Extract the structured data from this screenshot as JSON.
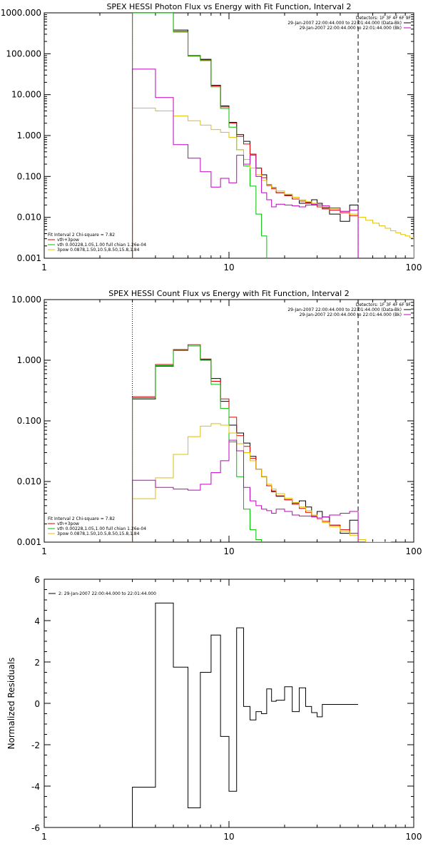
{
  "chart_data": [
    {
      "type": "line",
      "step": true,
      "title": "SPEX HESSI Photon Flux vs Energy with Fit Function, Interval 2",
      "x_scale": "log",
      "y_scale": "log",
      "xlim": [
        1,
        100
      ],
      "ylim": [
        0.001,
        1000
      ],
      "x_ticks": [
        "1",
        "10",
        "100"
      ],
      "y_ticks": [
        "1000.000",
        "100.000",
        "10.000",
        "1.000",
        "0.100",
        "0.010",
        "0.001"
      ],
      "legend_top": {
        "header": "Detectors: 1F 3F 4F 6F 9F",
        "entries": [
          {
            "text": "29-Jan-2007 22:00:44.000 to 22:01:44.000 (Data-Bk)",
            "color": "#000000"
          },
          {
            "text": "29-Jan-2007 22:00:44.000 to 22:01:44.000 (Bk)",
            "color": "#c000c0"
          }
        ]
      },
      "legend_bottom": {
        "header": "Fit Interval 2   Chi-square = 7.82",
        "entries": [
          {
            "text": "vth+3pow",
            "color": "#e00000"
          },
          {
            "text": "vth 0.00228,1.05,1.00  full chian 1.26e-04",
            "color": "#00c000"
          },
          {
            "text": "3pow 0.0878,1.50,10.5,8.50,15.8,1.84",
            "color": "#e0c000"
          }
        ]
      },
      "vlines": [
        {
          "x": 3,
          "style": "dotted",
          "color": "#000000"
        },
        {
          "x": 50,
          "style": "dashed",
          "color": "#000000"
        }
      ],
      "series": [
        {
          "role": "data-bk",
          "color": "#000000",
          "edges": [
            3,
            4,
            5,
            6,
            7,
            8,
            9,
            10,
            11,
            12,
            13,
            14,
            15,
            16,
            17,
            18,
            20,
            22,
            24,
            26,
            28,
            30,
            32,
            35,
            40,
            45,
            50
          ],
          "values": [
            1000,
            1000,
            380,
            90,
            73,
            17,
            5.3,
            2.1,
            1.05,
            0.72,
            0.35,
            0.16,
            0.11,
            0.063,
            0.053,
            0.04,
            0.035,
            0.028,
            0.022,
            0.023,
            0.027,
            0.022,
            0.017,
            0.012,
            0.008,
            0.02
          ]
        },
        {
          "role": "vth+3pow",
          "color": "#e00000",
          "edges": [
            3,
            4,
            5,
            6,
            7,
            8,
            9,
            10,
            11,
            12,
            13,
            14,
            15,
            16,
            17,
            18,
            20,
            22,
            24,
            26,
            28,
            30,
            32,
            35,
            40,
            45,
            50
          ],
          "values": [
            1000,
            1000,
            350,
            88,
            71,
            16.5,
            5.0,
            2.0,
            0.95,
            0.62,
            0.35,
            0.16,
            0.093,
            0.06,
            0.05,
            0.04,
            0.034,
            0.028,
            0.025,
            0.022,
            0.02,
            0.018,
            0.016,
            0.015,
            0.013,
            0.011
          ]
        },
        {
          "role": "vth",
          "color": "#00c000",
          "edges": [
            3,
            4,
            5,
            6,
            7,
            8,
            9,
            10,
            11,
            12,
            13,
            14,
            15,
            16
          ],
          "values": [
            1000,
            1000,
            340,
            87,
            68,
            15.5,
            4.6,
            1.6,
            0.45,
            0.18,
            0.058,
            0.012,
            0.0035
          ]
        },
        {
          "role": "3pow",
          "color": "#e0c000",
          "edges": [
            3,
            4,
            5,
            6,
            7,
            8,
            9,
            10,
            11,
            12,
            13,
            14,
            15,
            16,
            17,
            18,
            20,
            22,
            24,
            26,
            28,
            30,
            32,
            35,
            40,
            45,
            50,
            55,
            60,
            65,
            70,
            75,
            80,
            85,
            90,
            95,
            100
          ],
          "values": [
            4.7,
            4.0,
            3.0,
            2.3,
            1.8,
            1.4,
            1.2,
            0.9,
            0.45,
            0.26,
            0.16,
            0.11,
            0.08,
            0.062,
            0.052,
            0.044,
            0.037,
            0.031,
            0.027,
            0.024,
            0.022,
            0.02,
            0.018,
            0.016,
            0.014,
            0.012,
            0.01,
            0.0085,
            0.0072,
            0.0062,
            0.0054,
            0.0047,
            0.0042,
            0.0038,
            0.0035,
            0.0032
          ]
        },
        {
          "role": "bk",
          "color": "#c000c0",
          "edges": [
            3,
            4,
            5,
            6,
            7,
            8,
            9,
            10,
            11,
            12,
            13,
            14,
            15,
            16,
            17,
            18,
            20,
            22,
            24,
            26,
            28,
            30,
            32,
            35,
            40,
            45,
            50
          ],
          "values": [
            42,
            8.5,
            0.6,
            0.28,
            0.13,
            0.055,
            0.09,
            0.07,
            0.33,
            0.2,
            0.33,
            0.1,
            0.04,
            0.027,
            0.018,
            0.021,
            0.02,
            0.019,
            0.018,
            0.02,
            0.021,
            0.02,
            0.019,
            0.017,
            0.014,
            0.015
          ]
        }
      ]
    },
    {
      "type": "line",
      "step": true,
      "title": "SPEX HESSI Count Flux vs Energy with Fit Function, Interval 2",
      "x_scale": "log",
      "y_scale": "log",
      "xlim": [
        1,
        100
      ],
      "ylim": [
        0.001,
        10
      ],
      "x_ticks": [
        "1",
        "10",
        "100"
      ],
      "y_ticks": [
        "10.000",
        "1.000",
        "0.100",
        "0.010",
        "0.001"
      ],
      "legend_top": {
        "header": "Detectors: 1F 3F 4F 6F 9F",
        "entries": [
          {
            "text": "29-Jan-2007 22:00:44.000 to 22:01:44.000 (Data-Bk)",
            "color": "#000000"
          },
          {
            "text": "29-Jan-2007 22:00:44.000 to 22:01:44.000 (Bk)",
            "color": "#c000c0"
          }
        ]
      },
      "legend_bottom": {
        "header": "Fit Interval 2   Chi-square = 7.82",
        "entries": [
          {
            "text": "vth+3pow",
            "color": "#e00000"
          },
          {
            "text": "vth 0.00228,1.05,1.00  full chian 1.26e-04",
            "color": "#00c000"
          },
          {
            "text": "3pow 0.0878,1.50,10.5,8.50,15.8,1.84",
            "color": "#e0c000"
          }
        ]
      },
      "vlines": [
        {
          "x": 3,
          "style": "dotted",
          "color": "#000000"
        },
        {
          "x": 50,
          "style": "dashed",
          "color": "#000000"
        }
      ],
      "series": [
        {
          "role": "data-bk",
          "color": "#000000",
          "edges": [
            3,
            4,
            5,
            6,
            7,
            8,
            9,
            10,
            11,
            12,
            13,
            14,
            15,
            16,
            17,
            18,
            20,
            22,
            24,
            26,
            28,
            30,
            32,
            35,
            40,
            45,
            50
          ],
          "values": [
            0.23,
            0.8,
            1.45,
            1.72,
            1.02,
            0.5,
            0.21,
            0.085,
            0.063,
            0.043,
            0.026,
            0.016,
            0.012,
            0.0085,
            0.0068,
            0.0057,
            0.005,
            0.0044,
            0.0048,
            0.0038,
            0.0028,
            0.0032,
            0.0026,
            0.0019,
            0.0014,
            0.0023
          ]
        },
        {
          "role": "vth+3pow",
          "color": "#e00000",
          "edges": [
            3,
            4,
            5,
            6,
            7,
            8,
            9,
            10,
            11,
            12,
            13,
            14,
            15,
            16,
            17,
            18,
            20,
            22,
            24,
            26,
            28,
            30,
            32,
            35,
            40,
            45,
            50
          ],
          "values": [
            0.25,
            0.85,
            1.5,
            1.8,
            1.05,
            0.45,
            0.23,
            0.115,
            0.057,
            0.038,
            0.024,
            0.016,
            0.012,
            0.0085,
            0.007,
            0.0058,
            0.005,
            0.0042,
            0.0036,
            0.0031,
            0.0027,
            0.0024,
            0.0022,
            0.0019,
            0.0016,
            0.0014
          ]
        },
        {
          "role": "vth",
          "color": "#00c000",
          "edges": [
            3,
            4,
            5,
            6,
            7,
            8,
            9,
            10,
            11,
            12,
            13,
            14,
            15
          ],
          "values": [
            0.24,
            0.82,
            1.45,
            1.72,
            1.0,
            0.4,
            0.16,
            0.045,
            0.012,
            0.0035,
            0.0016,
            0.0011
          ]
        },
        {
          "role": "3pow",
          "color": "#e0c000",
          "edges": [
            3,
            4,
            5,
            6,
            7,
            8,
            9,
            10,
            11,
            12,
            13,
            14,
            15,
            16,
            17,
            18,
            20,
            22,
            24,
            26,
            28,
            30,
            32,
            35,
            40,
            45,
            50,
            55,
            60,
            65,
            70,
            75
          ],
          "values": [
            0.0052,
            0.0115,
            0.028,
            0.055,
            0.082,
            0.09,
            0.085,
            0.063,
            0.042,
            0.03,
            0.022,
            0.016,
            0.012,
            0.009,
            0.0075,
            0.0063,
            0.0053,
            0.0045,
            0.0038,
            0.0033,
            0.0028,
            0.0024,
            0.0021,
            0.0018,
            0.0015,
            0.0013,
            0.0011,
            0.001,
            0.001,
            0.001,
            0.001
          ]
        },
        {
          "role": "bk",
          "color": "#c000c0",
          "edges": [
            3,
            4,
            5,
            6,
            7,
            8,
            9,
            10,
            11,
            12,
            13,
            14,
            15,
            16,
            17,
            18,
            20,
            22,
            24,
            26,
            28,
            30,
            32,
            35,
            40,
            45,
            50
          ],
          "values": [
            0.0105,
            0.008,
            0.0075,
            0.0072,
            0.009,
            0.014,
            0.022,
            0.048,
            0.032,
            0.008,
            0.0048,
            0.004,
            0.0035,
            0.0033,
            0.003,
            0.0035,
            0.0032,
            0.0028,
            0.0027,
            0.0027,
            0.0026,
            0.0025,
            0.0026,
            0.0028,
            0.003,
            0.0032
          ]
        }
      ]
    },
    {
      "type": "line",
      "step": true,
      "title": "",
      "x_scale": "log",
      "y_scale": "linear",
      "xlim": [
        1,
        100
      ],
      "ylim": [
        -6,
        6
      ],
      "x_ticks": [
        "1",
        "10",
        "100"
      ],
      "y_ticks": [
        "6",
        "4",
        "2",
        "0",
        "-2",
        "-4",
        "-6"
      ],
      "ylabel": "Normalized Residuals",
      "legend_top": {
        "header": "",
        "entries": [
          {
            "text": "2: 29-Jan-2007 22:00:44.000 to 22:01:44.000",
            "color": "#000000"
          }
        ]
      },
      "legend_bottom": {
        "header": "",
        "entries": []
      },
      "vlines": [],
      "series": [
        {
          "role": "residuals",
          "color": "#000000",
          "edges": [
            3,
            4,
            5,
            6,
            7,
            8,
            9,
            10,
            11,
            12,
            13,
            14,
            15,
            16,
            17,
            18,
            20,
            22,
            24,
            26,
            28,
            30,
            32,
            35,
            40,
            45,
            50
          ],
          "values": [
            -4.05,
            4.85,
            1.75,
            -5.05,
            1.5,
            3.3,
            -1.6,
            -4.25,
            3.65,
            -0.15,
            -0.8,
            -0.4,
            -0.5,
            0.7,
            0.1,
            0.15,
            0.8,
            -0.4,
            0.75,
            -0.15,
            -0.45,
            -0.65,
            -0.05,
            -0.05,
            -0.05,
            -0.05
          ],
          "extend_to_min_at_start": true
        }
      ]
    }
  ]
}
